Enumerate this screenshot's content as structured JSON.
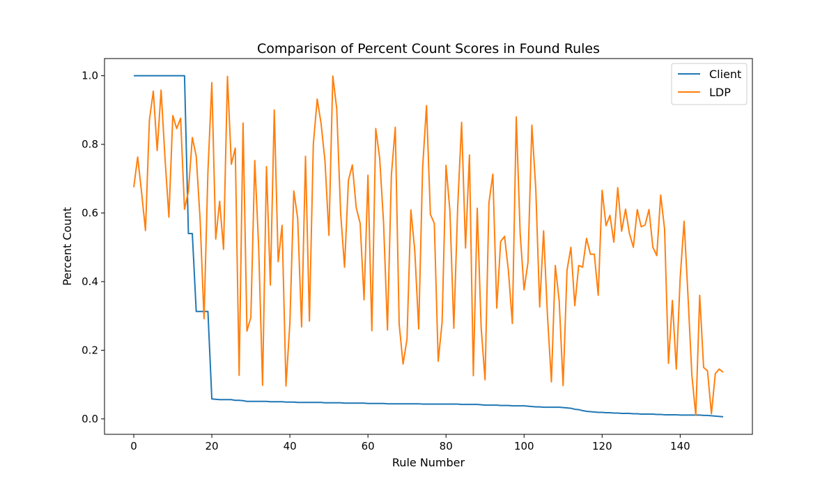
{
  "chart_data": {
    "type": "line",
    "title": "Comparison of Percent Count Scores in Found Rules",
    "xlabel": "Rule Number",
    "ylabel": "Percent Count",
    "xlim": [
      -7.5,
      158.5
    ],
    "ylim": [
      -0.045,
      1.05
    ],
    "xticks": [
      0,
      20,
      40,
      60,
      80,
      100,
      120,
      140
    ],
    "yticks": [
      0.0,
      0.2,
      0.4,
      0.6,
      0.8,
      1.0
    ],
    "ytick_labels": [
      "0.0",
      "0.2",
      "0.4",
      "0.6",
      "0.8",
      "1.0"
    ],
    "grid": false,
    "legend_position": "top-right",
    "series": [
      {
        "name": "Client",
        "color": "#1f77b4",
        "x": [
          0,
          1,
          2,
          3,
          4,
          5,
          6,
          7,
          8,
          9,
          10,
          11,
          12,
          13,
          14,
          15,
          16,
          17,
          18,
          19,
          20,
          21,
          22,
          23,
          24,
          25,
          26,
          27,
          28,
          29,
          30,
          31,
          32,
          33,
          34,
          35,
          36,
          37,
          38,
          39,
          40,
          41,
          42,
          43,
          44,
          45,
          46,
          47,
          48,
          49,
          50,
          51,
          52,
          53,
          54,
          55,
          56,
          57,
          58,
          59,
          60,
          61,
          62,
          63,
          64,
          65,
          66,
          67,
          68,
          69,
          70,
          71,
          72,
          73,
          74,
          75,
          76,
          77,
          78,
          79,
          80,
          81,
          82,
          83,
          84,
          85,
          86,
          87,
          88,
          89,
          90,
          91,
          92,
          93,
          94,
          95,
          96,
          97,
          98,
          99,
          100,
          101,
          102,
          103,
          104,
          105,
          106,
          107,
          108,
          109,
          110,
          111,
          112,
          113,
          114,
          115,
          116,
          117,
          118,
          119,
          120,
          121,
          122,
          123,
          124,
          125,
          126,
          127,
          128,
          129,
          130,
          131,
          132,
          133,
          134,
          135,
          136,
          137,
          138,
          139,
          140,
          141,
          142,
          143,
          144,
          145,
          146,
          147,
          148,
          149,
          150,
          151
        ],
        "values": [
          1.0,
          1.0,
          1.0,
          1.0,
          1.0,
          1.0,
          1.0,
          1.0,
          1.0,
          1.0,
          1.0,
          1.0,
          1.0,
          1.0,
          0.54,
          0.54,
          0.313,
          0.313,
          0.313,
          0.313,
          0.058,
          0.057,
          0.056,
          0.056,
          0.056,
          0.056,
          0.054,
          0.054,
          0.053,
          0.051,
          0.051,
          0.051,
          0.051,
          0.051,
          0.051,
          0.05,
          0.05,
          0.05,
          0.05,
          0.049,
          0.049,
          0.049,
          0.048,
          0.048,
          0.048,
          0.048,
          0.048,
          0.048,
          0.048,
          0.047,
          0.047,
          0.047,
          0.047,
          0.047,
          0.046,
          0.046,
          0.046,
          0.046,
          0.046,
          0.046,
          0.045,
          0.045,
          0.045,
          0.045,
          0.045,
          0.044,
          0.044,
          0.044,
          0.044,
          0.044,
          0.044,
          0.044,
          0.044,
          0.044,
          0.043,
          0.043,
          0.043,
          0.043,
          0.043,
          0.043,
          0.043,
          0.043,
          0.043,
          0.043,
          0.042,
          0.042,
          0.042,
          0.042,
          0.042,
          0.041,
          0.04,
          0.04,
          0.04,
          0.04,
          0.039,
          0.039,
          0.039,
          0.038,
          0.038,
          0.038,
          0.038,
          0.037,
          0.036,
          0.035,
          0.035,
          0.034,
          0.034,
          0.034,
          0.034,
          0.034,
          0.033,
          0.032,
          0.031,
          0.028,
          0.027,
          0.024,
          0.022,
          0.021,
          0.02,
          0.019,
          0.019,
          0.018,
          0.018,
          0.017,
          0.017,
          0.016,
          0.016,
          0.016,
          0.015,
          0.015,
          0.014,
          0.014,
          0.014,
          0.014,
          0.013,
          0.013,
          0.012,
          0.012,
          0.012,
          0.012,
          0.011,
          0.011,
          0.011,
          0.011,
          0.011,
          0.011,
          0.01,
          0.01,
          0.009,
          0.008,
          0.007,
          0.006
        ]
      },
      {
        "name": "LDP",
        "color": "#ff7f0e",
        "x": [
          0,
          1,
          2,
          3,
          4,
          5,
          6,
          7,
          8,
          9,
          10,
          11,
          12,
          13,
          14,
          15,
          16,
          17,
          18,
          19,
          20,
          21,
          22,
          23,
          24,
          25,
          26,
          27,
          28,
          29,
          30,
          31,
          32,
          33,
          34,
          35,
          36,
          37,
          38,
          39,
          40,
          41,
          42,
          43,
          44,
          45,
          46,
          47,
          48,
          49,
          50,
          51,
          52,
          53,
          54,
          55,
          56,
          57,
          58,
          59,
          60,
          61,
          62,
          63,
          64,
          65,
          66,
          67,
          68,
          69,
          70,
          71,
          72,
          73,
          74,
          75,
          76,
          77,
          78,
          79,
          80,
          81,
          82,
          83,
          84,
          85,
          86,
          87,
          88,
          89,
          90,
          91,
          92,
          93,
          94,
          95,
          96,
          97,
          98,
          99,
          100,
          101,
          102,
          103,
          104,
          105,
          106,
          107,
          108,
          109,
          110,
          111,
          112,
          113,
          114,
          115,
          116,
          117,
          118,
          119,
          120,
          121,
          122,
          123,
          124,
          125,
          126,
          127,
          128,
          129,
          130,
          131,
          132,
          133,
          134,
          135,
          136,
          137,
          138,
          139,
          140,
          141,
          142,
          143,
          144,
          145,
          146,
          147,
          148,
          149,
          150,
          151
        ],
        "values": [
          0.675,
          0.763,
          0.66,
          0.549,
          0.87,
          0.955,
          0.782,
          0.958,
          0.76,
          0.588,
          0.884,
          0.846,
          0.876,
          0.611,
          0.663,
          0.82,
          0.766,
          0.58,
          0.292,
          0.72,
          0.98,
          0.524,
          0.634,
          0.494,
          0.998,
          0.742,
          0.789,
          0.127,
          0.862,
          0.256,
          0.296,
          0.753,
          0.5,
          0.098,
          0.735,
          0.39,
          0.9,
          0.458,
          0.564,
          0.096,
          0.28,
          0.664,
          0.584,
          0.268,
          0.765,
          0.285,
          0.8,
          0.932,
          0.86,
          0.75,
          0.535,
          0.999,
          0.904,
          0.6,
          0.442,
          0.695,
          0.74,
          0.615,
          0.57,
          0.347,
          0.71,
          0.257,
          0.846,
          0.76,
          0.572,
          0.259,
          0.71,
          0.85,
          0.276,
          0.16,
          0.232,
          0.609,
          0.49,
          0.262,
          0.73,
          0.913,
          0.596,
          0.57,
          0.168,
          0.282,
          0.739,
          0.606,
          0.264,
          0.62,
          0.864,
          0.498,
          0.769,
          0.126,
          0.614,
          0.267,
          0.114,
          0.63,
          0.713,
          0.323,
          0.517,
          0.532,
          0.43,
          0.278,
          0.88,
          0.54,
          0.376,
          0.456,
          0.856,
          0.67,
          0.326,
          0.548,
          0.3,
          0.108,
          0.447,
          0.344,
          0.097,
          0.433,
          0.5,
          0.33,
          0.447,
          0.442,
          0.526,
          0.48,
          0.48,
          0.36,
          0.666,
          0.563,
          0.593,
          0.515,
          0.674,
          0.547,
          0.611,
          0.54,
          0.5,
          0.61,
          0.56,
          0.565,
          0.61,
          0.5,
          0.476,
          0.652,
          0.553,
          0.162,
          0.345,
          0.145,
          0.411,
          0.576,
          0.358,
          0.126,
          0.01,
          0.36,
          0.15,
          0.14,
          0.015,
          0.132,
          0.145,
          0.136
        ]
      }
    ]
  }
}
